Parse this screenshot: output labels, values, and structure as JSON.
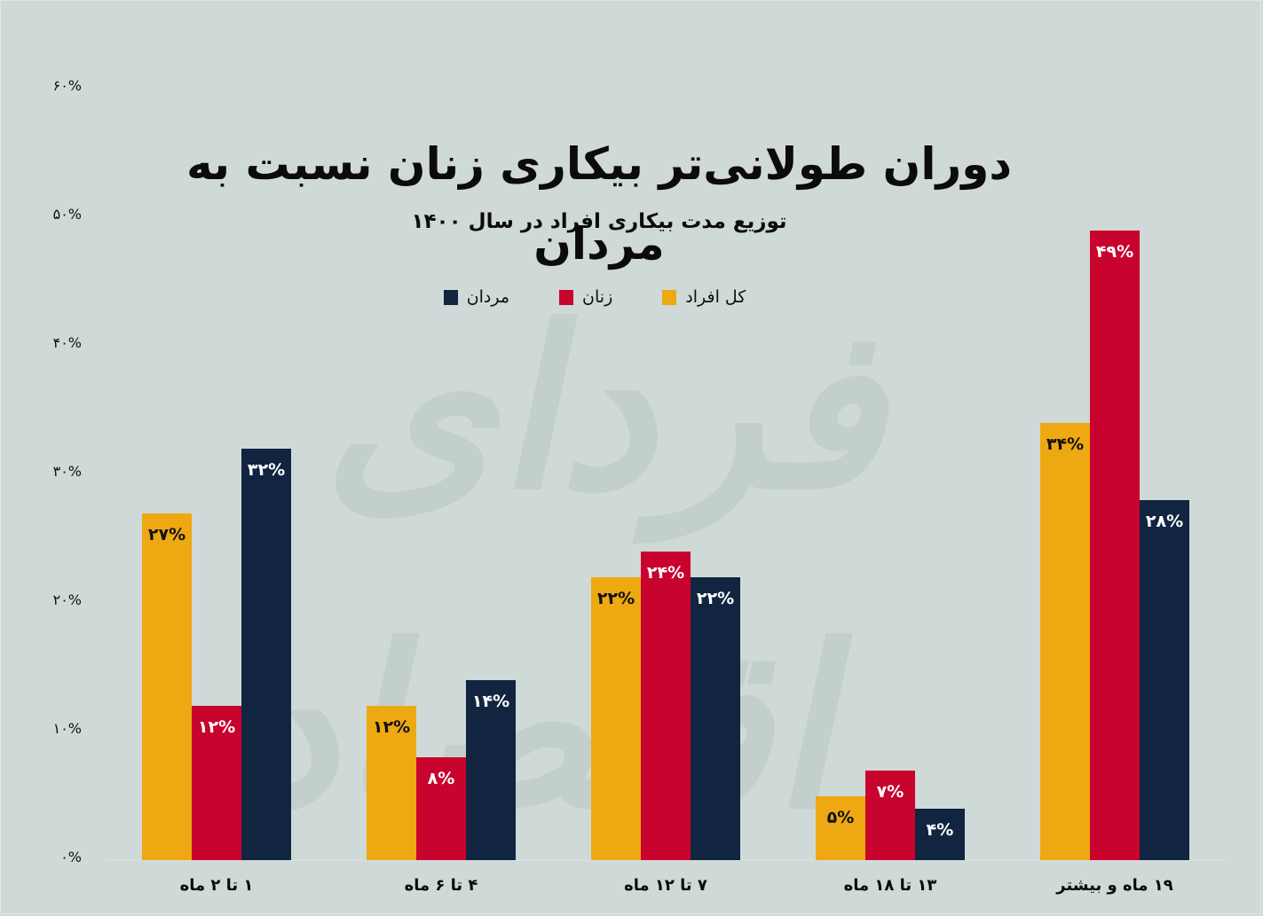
{
  "title": "دوران طولانی‌تر بیکاری زنان نسبت به مردان",
  "subtitle": "توزیع مدت بیکاری افراد در سال ۱۴۰۰",
  "watermark": "فردای اقتصاد",
  "colors": {
    "background": "#cfd9d7",
    "total": "#eea812",
    "women": "#c8032d",
    "men": "#112541"
  },
  "legend": [
    {
      "key": "total",
      "label": "کل افراد",
      "color": "#eea812"
    },
    {
      "key": "women",
      "label": "زنان",
      "color": "#c8032d"
    },
    {
      "key": "men",
      "label": "مردان",
      "color": "#112541"
    }
  ],
  "y_axis": {
    "ticks": [
      "۰%",
      "۱۰%",
      "۲۰%",
      "۳۰%",
      "۴۰%",
      "۵۰%",
      "۶۰%"
    ]
  },
  "chart_data": {
    "type": "bar",
    "title": "دوران طولانی‌تر بیکاری زنان نسبت به مردان",
    "subtitle": "توزیع مدت بیکاری افراد در سال ۱۴۰۰",
    "xlabel": "",
    "ylabel": "",
    "ylim": [
      0,
      60
    ],
    "y_ticks": [
      0,
      10,
      20,
      30,
      40,
      50,
      60
    ],
    "y_tick_labels": [
      "۰%",
      "۱۰%",
      "۲۰%",
      "۳۰%",
      "۴۰%",
      "۵۰%",
      "۶۰%"
    ],
    "grid": false,
    "legend_position": "top-center",
    "categories": [
      "۱ تا ۲ ماه",
      "۴ تا ۶ ماه",
      "۷ تا ۱۲ ماه",
      "۱۳ تا ۱۸ ماه",
      "۱۹ ماه و بیشتر"
    ],
    "series": [
      {
        "name": "کل افراد",
        "color": "#eea812",
        "values": [
          27,
          12,
          22,
          5,
          34
        ],
        "labels": [
          "۲۷%",
          "۱۲%",
          "۲۲%",
          "۵%",
          "۳۴%"
        ]
      },
      {
        "name": "زنان",
        "color": "#c8032d",
        "values": [
          12,
          8,
          24,
          7,
          49
        ],
        "labels": [
          "۱۲%",
          "۸%",
          "۲۴%",
          "۷%",
          "۴۹%"
        ]
      },
      {
        "name": "مردان",
        "color": "#112541",
        "values": [
          32,
          14,
          22,
          4,
          28
        ],
        "labels": [
          "۳۲%",
          "۱۴%",
          "۲۲%",
          "۴%",
          "۲۸%"
        ]
      }
    ]
  }
}
